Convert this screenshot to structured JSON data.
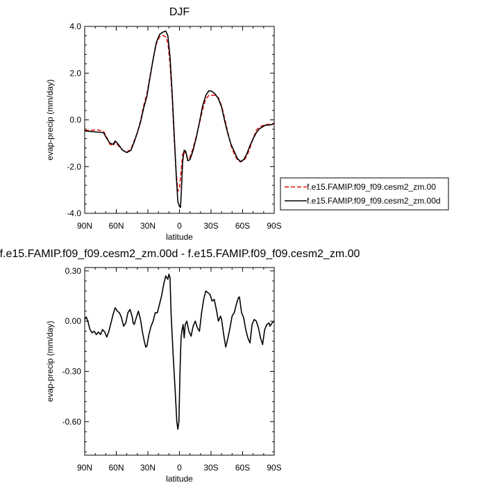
{
  "chart_data": [
    {
      "type": "line",
      "title": "DJF",
      "xlabel": "latitude",
      "ylabel": "evap-precip (mm/day)",
      "xlim": [
        90,
        -90
      ],
      "ylim": [
        -4.0,
        4.0
      ],
      "xticks": [
        {
          "value": 90,
          "label": "90N"
        },
        {
          "value": 60,
          "label": "60N"
        },
        {
          "value": 30,
          "label": "30N"
        },
        {
          "value": 0,
          "label": "0"
        },
        {
          "value": -30,
          "label": "30S"
        },
        {
          "value": -60,
          "label": "60S"
        },
        {
          "value": -90,
          "label": "90S"
        }
      ],
      "yticks": [
        {
          "value": 4.0,
          "label": "4.0"
        },
        {
          "value": 2.0,
          "label": "2.0"
        },
        {
          "value": 0.0,
          "label": "0.0"
        },
        {
          "value": -2.0,
          "label": "-2.0"
        },
        {
          "value": -4.0,
          "label": "-4.0"
        }
      ],
      "legend_placement": "right",
      "series": [
        {
          "name": "f.e15.FAMIP.f09_f09.cesm2_zm.00",
          "color": "#e8100c",
          "dash": "dashed",
          "points": [
            [
              90,
              -0.45
            ],
            [
              84,
              -0.45
            ],
            [
              78,
              -0.42
            ],
            [
              72,
              -0.5
            ],
            [
              69,
              -0.75
            ],
            [
              66,
              -1.05
            ],
            [
              63,
              -1.1
            ],
            [
              61,
              -0.95
            ],
            [
              58,
              -1.1
            ],
            [
              54,
              -1.3
            ],
            [
              50,
              -1.38
            ],
            [
              46,
              -1.25
            ],
            [
              43,
              -0.9
            ],
            [
              40,
              -0.55
            ],
            [
              37,
              -0.05
            ],
            [
              34,
              0.6
            ],
            [
              31,
              1.1
            ],
            [
              28,
              1.85
            ],
            [
              25,
              2.6
            ],
            [
              22,
              3.25
            ],
            [
              19,
              3.55
            ],
            [
              16,
              3.62
            ],
            [
              13,
              3.55
            ],
            [
              11,
              3.3
            ],
            [
              9,
              2.4
            ],
            [
              7,
              1.0
            ],
            [
              5,
              -0.8
            ],
            [
              3,
              -2.3
            ],
            [
              1.5,
              -3.05
            ],
            [
              0,
              -2.95
            ],
            [
              -1.5,
              -2.2
            ],
            [
              -3,
              -1.5
            ],
            [
              -4.5,
              -1.3
            ],
            [
              -6,
              -1.45
            ],
            [
              -8,
              -1.7
            ],
            [
              -10,
              -1.6
            ],
            [
              -13,
              -1.2
            ],
            [
              -16,
              -0.7
            ],
            [
              -19,
              -0.15
            ],
            [
              -22,
              0.45
            ],
            [
              -25,
              0.9
            ],
            [
              -28,
              1.05
            ],
            [
              -31,
              1.05
            ],
            [
              -34,
              1.05
            ],
            [
              -37,
              0.95
            ],
            [
              -40,
              0.6
            ],
            [
              -43,
              0.05
            ],
            [
              -46,
              -0.55
            ],
            [
              -49,
              -1.1
            ],
            [
              -52,
              -1.45
            ],
            [
              -55,
              -1.7
            ],
            [
              -58,
              -1.8
            ],
            [
              -61,
              -1.75
            ],
            [
              -64,
              -1.55
            ],
            [
              -67,
              -1.2
            ],
            [
              -70,
              -0.8
            ],
            [
              -73,
              -0.45
            ],
            [
              -76,
              -0.3
            ],
            [
              -79,
              -0.25
            ],
            [
              -82,
              -0.2
            ],
            [
              -85,
              -0.2
            ],
            [
              -88,
              -0.18
            ],
            [
              -90,
              -0.12
            ]
          ]
        },
        {
          "name": "f.e15.FAMIP.f09_f09.cesm2_zm.00d",
          "color": "#000000",
          "dash": "solid",
          "points": [
            [
              90,
              -0.47
            ],
            [
              84,
              -0.5
            ],
            [
              78,
              -0.52
            ],
            [
              72,
              -0.55
            ],
            [
              69,
              -0.8
            ],
            [
              66,
              -1.0
            ],
            [
              63,
              -1.05
            ],
            [
              61,
              -0.9
            ],
            [
              58,
              -1.05
            ],
            [
              54,
              -1.3
            ],
            [
              50,
              -1.4
            ],
            [
              46,
              -1.3
            ],
            [
              43,
              -0.95
            ],
            [
              40,
              -0.55
            ],
            [
              37,
              -0.1
            ],
            [
              34,
              0.5
            ],
            [
              31,
              1.0
            ],
            [
              28,
              1.8
            ],
            [
              25,
              2.6
            ],
            [
              22,
              3.3
            ],
            [
              19,
              3.65
            ],
            [
              16,
              3.75
            ],
            [
              13,
              3.8
            ],
            [
              11,
              3.6
            ],
            [
              9,
              2.7
            ],
            [
              7,
              1.2
            ],
            [
              5,
              -0.6
            ],
            [
              3,
              -2.4
            ],
            [
              1.5,
              -3.5
            ],
            [
              0,
              -3.7
            ],
            [
              -1,
              -3.75
            ],
            [
              -2,
              -2.9
            ],
            [
              -3,
              -1.8
            ],
            [
              -4.5,
              -1.3
            ],
            [
              -6,
              -1.35
            ],
            [
              -8,
              -1.75
            ],
            [
              -10,
              -1.7
            ],
            [
              -13,
              -1.3
            ],
            [
              -16,
              -0.75
            ],
            [
              -19,
              -0.1
            ],
            [
              -22,
              0.6
            ],
            [
              -25,
              1.05
            ],
            [
              -28,
              1.25
            ],
            [
              -31,
              1.22
            ],
            [
              -34,
              1.1
            ],
            [
              -37,
              0.9
            ],
            [
              -40,
              0.55
            ],
            [
              -43,
              -0.05
            ],
            [
              -46,
              -0.6
            ],
            [
              -49,
              -1.05
            ],
            [
              -52,
              -1.35
            ],
            [
              -55,
              -1.65
            ],
            [
              -58,
              -1.78
            ],
            [
              -61,
              -1.7
            ],
            [
              -64,
              -1.45
            ],
            [
              -67,
              -1.1
            ],
            [
              -70,
              -0.8
            ],
            [
              -73,
              -0.55
            ],
            [
              -76,
              -0.38
            ],
            [
              -79,
              -0.3
            ],
            [
              -82,
              -0.22
            ],
            [
              -85,
              -0.22
            ],
            [
              -88,
              -0.2
            ],
            [
              -90,
              -0.15
            ]
          ]
        }
      ]
    },
    {
      "type": "line",
      "title": "f.e15.FAMIP.f09_f09.cesm2_zm.00d - f.e15.FAMIP.f09_f09.cesm2_zm.00",
      "xlabel": "latitude",
      "ylabel": "evap-precip (mm/day)",
      "xlim": [
        90,
        -90
      ],
      "ylim": [
        -0.8,
        0.32
      ],
      "xticks": [
        {
          "value": 90,
          "label": "90N"
        },
        {
          "value": 60,
          "label": "60N"
        },
        {
          "value": 30,
          "label": "30N"
        },
        {
          "value": 0,
          "label": "0"
        },
        {
          "value": -30,
          "label": "30S"
        },
        {
          "value": -60,
          "label": "60S"
        },
        {
          "value": -90,
          "label": "90S"
        }
      ],
      "yticks": [
        {
          "value": 0.3,
          "label": "0.30"
        },
        {
          "value": 0.0,
          "label": "0.00"
        },
        {
          "value": -0.3,
          "label": "-0.30"
        },
        {
          "value": -0.6,
          "label": "-0.60"
        }
      ],
      "series": [
        {
          "color": "#000000",
          "dash": "solid",
          "points": [
            [
              90,
              0.01
            ],
            [
              88.5,
              0.025
            ],
            [
              87,
              0.0
            ],
            [
              85,
              -0.05
            ],
            [
              83,
              -0.07
            ],
            [
              81,
              -0.06
            ],
            [
              79,
              -0.08
            ],
            [
              77,
              -0.065
            ],
            [
              75,
              -0.08
            ],
            [
              73,
              -0.05
            ],
            [
              71,
              -0.065
            ],
            [
              69,
              -0.095
            ],
            [
              67,
              -0.06
            ],
            [
              65,
              -0.01
            ],
            [
              63,
              0.04
            ],
            [
              61,
              0.08
            ],
            [
              59,
              0.06
            ],
            [
              57,
              0.05
            ],
            [
              55,
              0.02
            ],
            [
              53,
              -0.03
            ],
            [
              51,
              -0.01
            ],
            [
              49,
              0.05
            ],
            [
              47,
              0.07
            ],
            [
              45,
              0.03
            ],
            [
              44,
              -0.01
            ],
            [
              43,
              -0.02
            ],
            [
              41,
              0.02
            ],
            [
              39,
              0.06
            ],
            [
              37,
              0.01
            ],
            [
              35,
              -0.07
            ],
            [
              33,
              -0.13
            ],
            [
              32,
              -0.155
            ],
            [
              31,
              -0.15
            ],
            [
              29,
              -0.08
            ],
            [
              27,
              -0.03
            ],
            [
              25,
              0.0
            ],
            [
              23,
              0.05
            ],
            [
              21,
              0.05
            ],
            [
              19,
              0.1
            ],
            [
              17,
              0.15
            ],
            [
              15,
              0.22
            ],
            [
              13,
              0.27
            ],
            [
              12,
              0.26
            ],
            [
              11,
              0.25
            ],
            [
              10,
              0.28
            ],
            [
              9,
              0.26
            ],
            [
              8,
              0.05
            ],
            [
              6,
              -0.2
            ],
            [
              4,
              -0.42
            ],
            [
              2.5,
              -0.6
            ],
            [
              1.5,
              -0.645
            ],
            [
              0.5,
              -0.6
            ],
            [
              -0.5,
              -0.3
            ],
            [
              -1.5,
              -0.1
            ],
            [
              -2.5,
              -0.05
            ],
            [
              -3.5,
              -0.02
            ],
            [
              -4.5,
              -0.1
            ],
            [
              -5.5,
              -0.02
            ],
            [
              -7,
              0.0
            ],
            [
              -9,
              -0.06
            ],
            [
              -11,
              -0.09
            ],
            [
              -13,
              -0.03
            ],
            [
              -15,
              0.0
            ],
            [
              -17,
              -0.04
            ],
            [
              -19,
              -0.06
            ],
            [
              -21,
              0.05
            ],
            [
              -23,
              0.13
            ],
            [
              -25,
              0.18
            ],
            [
              -27,
              0.17
            ],
            [
              -29,
              0.16
            ],
            [
              -31,
              0.12
            ],
            [
              -33,
              0.13
            ],
            [
              -35,
              0.07
            ],
            [
              -37,
              0.0
            ],
            [
              -39,
              0.03
            ],
            [
              -40,
              0.01
            ],
            [
              -42,
              -0.08
            ],
            [
              -44,
              -0.155
            ],
            [
              -46,
              -0.1
            ],
            [
              -48,
              -0.04
            ],
            [
              -50,
              0.03
            ],
            [
              -52,
              0.05
            ],
            [
              -54,
              0.1
            ],
            [
              -56,
              0.14
            ],
            [
              -57,
              0.145
            ],
            [
              -59,
              0.05
            ],
            [
              -61,
              0.02
            ],
            [
              -63,
              -0.05
            ],
            [
              -65,
              -0.1
            ],
            [
              -67,
              -0.13
            ],
            [
              -69,
              -0.02
            ],
            [
              -71,
              0.01
            ],
            [
              -73,
              0.0
            ],
            [
              -75,
              -0.04
            ],
            [
              -77,
              -0.1
            ],
            [
              -79,
              -0.14
            ],
            [
              -81,
              -0.05
            ],
            [
              -83,
              -0.02
            ],
            [
              -85,
              -0.01
            ],
            [
              -86,
              -0.03
            ],
            [
              -88,
              -0.01
            ],
            [
              -90,
              -0.0
            ]
          ]
        }
      ]
    }
  ]
}
